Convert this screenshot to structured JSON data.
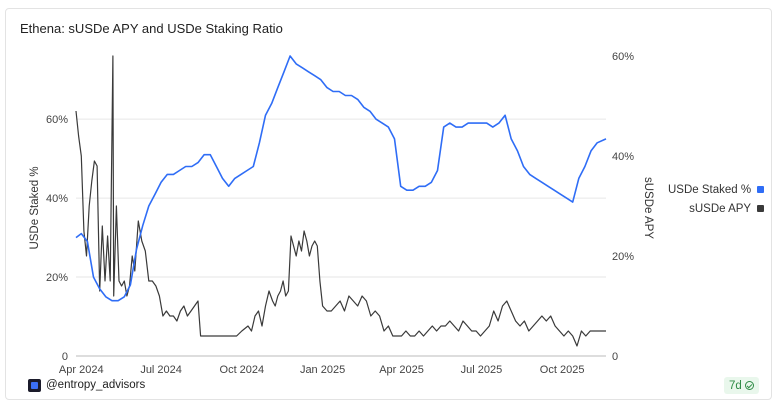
{
  "chart_data": {
    "type": "line",
    "title": "Ethena: sUSDe APY and USDe Staking Ratio",
    "ylabel_left": "USDe Staked %",
    "ylabel_right": "sUSDe APY",
    "ylim_left": [
      0,
      76
    ],
    "ylim_right": [
      0,
      60
    ],
    "yticks_left": [
      "0",
      "20%",
      "40%",
      "60%"
    ],
    "yticks_right": [
      "0",
      "20%",
      "40%",
      "60%"
    ],
    "xlim": [
      "2024-03-26",
      "2025-11-20"
    ],
    "xticks": [
      {
        "date": "2024-04-01",
        "label": "Apr 2024"
      },
      {
        "date": "2024-07-01",
        "label": "Jul 2024"
      },
      {
        "date": "2024-10-01",
        "label": "Oct 2024"
      },
      {
        "date": "2025-01-01",
        "label": "Jan 2025"
      },
      {
        "date": "2025-04-01",
        "label": "Apr 2025"
      },
      {
        "date": "2025-07-01",
        "label": "Jul 2025"
      },
      {
        "date": "2025-10-01",
        "label": "Oct 2025"
      }
    ],
    "grid": "horizontal",
    "legend_position": "right",
    "series": [
      {
        "name": "USDe Staked %",
        "axis": "left",
        "color": "#2f6df6",
        "points": [
          [
            "2024-03-26",
            30
          ],
          [
            "2024-04-01",
            31
          ],
          [
            "2024-04-08",
            29
          ],
          [
            "2024-04-15",
            20
          ],
          [
            "2024-04-22",
            17
          ],
          [
            "2024-04-29",
            15
          ],
          [
            "2024-05-06",
            14
          ],
          [
            "2024-05-13",
            14
          ],
          [
            "2024-05-20",
            15
          ],
          [
            "2024-05-27",
            18
          ],
          [
            "2024-06-03",
            27
          ],
          [
            "2024-06-10",
            33
          ],
          [
            "2024-06-17",
            38
          ],
          [
            "2024-06-24",
            41
          ],
          [
            "2024-07-01",
            44
          ],
          [
            "2024-07-08",
            46
          ],
          [
            "2024-07-15",
            46
          ],
          [
            "2024-07-22",
            47
          ],
          [
            "2024-07-29",
            48
          ],
          [
            "2024-08-05",
            48
          ],
          [
            "2024-08-12",
            49
          ],
          [
            "2024-08-19",
            51
          ],
          [
            "2024-08-26",
            51
          ],
          [
            "2024-09-02",
            48
          ],
          [
            "2024-09-09",
            45
          ],
          [
            "2024-09-16",
            43
          ],
          [
            "2024-09-23",
            45
          ],
          [
            "2024-09-30",
            46
          ],
          [
            "2024-10-07",
            47
          ],
          [
            "2024-10-14",
            48
          ],
          [
            "2024-10-21",
            54
          ],
          [
            "2024-10-28",
            61
          ],
          [
            "2024-11-04",
            64
          ],
          [
            "2024-11-11",
            68
          ],
          [
            "2024-11-18",
            72
          ],
          [
            "2024-11-25",
            76
          ],
          [
            "2024-12-02",
            74
          ],
          [
            "2024-12-09",
            73
          ],
          [
            "2024-12-16",
            72
          ],
          [
            "2024-12-23",
            71
          ],
          [
            "2024-12-30",
            70
          ],
          [
            "2025-01-06",
            68
          ],
          [
            "2025-01-13",
            67
          ],
          [
            "2025-01-20",
            67
          ],
          [
            "2025-01-27",
            66
          ],
          [
            "2025-02-03",
            66
          ],
          [
            "2025-02-10",
            65
          ],
          [
            "2025-02-17",
            63
          ],
          [
            "2025-02-24",
            62
          ],
          [
            "2025-03-03",
            60
          ],
          [
            "2025-03-10",
            59
          ],
          [
            "2025-03-17",
            58
          ],
          [
            "2025-03-24",
            55
          ],
          [
            "2025-03-31",
            43
          ],
          [
            "2025-04-07",
            42
          ],
          [
            "2025-04-14",
            42
          ],
          [
            "2025-04-21",
            43
          ],
          [
            "2025-04-28",
            43
          ],
          [
            "2025-05-05",
            44
          ],
          [
            "2025-05-12",
            47
          ],
          [
            "2025-05-19",
            58
          ],
          [
            "2025-05-26",
            59
          ],
          [
            "2025-06-02",
            58
          ],
          [
            "2025-06-09",
            58
          ],
          [
            "2025-06-16",
            59
          ],
          [
            "2025-06-23",
            59
          ],
          [
            "2025-06-30",
            59
          ],
          [
            "2025-07-07",
            59
          ],
          [
            "2025-07-14",
            58
          ],
          [
            "2025-07-21",
            59
          ],
          [
            "2025-07-28",
            61
          ],
          [
            "2025-08-04",
            55
          ],
          [
            "2025-08-11",
            52
          ],
          [
            "2025-08-18",
            48
          ],
          [
            "2025-08-25",
            46
          ],
          [
            "2025-09-01",
            45
          ],
          [
            "2025-09-08",
            44
          ],
          [
            "2025-09-15",
            43
          ],
          [
            "2025-09-22",
            42
          ],
          [
            "2025-09-29",
            41
          ],
          [
            "2025-10-06",
            40
          ],
          [
            "2025-10-13",
            39
          ],
          [
            "2025-10-20",
            45
          ],
          [
            "2025-10-27",
            48
          ],
          [
            "2025-11-03",
            52
          ],
          [
            "2025-11-10",
            54
          ],
          [
            "2025-11-20",
            55
          ]
        ]
      },
      {
        "name": "sUSDe APY",
        "axis": "right",
        "color": "#3a3a3a",
        "points": [
          [
            "2024-03-26",
            49
          ],
          [
            "2024-03-29",
            44
          ],
          [
            "2024-04-01",
            40
          ],
          [
            "2024-04-04",
            25
          ],
          [
            "2024-04-07",
            20
          ],
          [
            "2024-04-10",
            30
          ],
          [
            "2024-04-13",
            35
          ],
          [
            "2024-04-16",
            39
          ],
          [
            "2024-04-19",
            38
          ],
          [
            "2024-04-22",
            13
          ],
          [
            "2024-04-25",
            26
          ],
          [
            "2024-04-28",
            15
          ],
          [
            "2024-05-01",
            24
          ],
          [
            "2024-05-04",
            15
          ],
          [
            "2024-05-07",
            60
          ],
          [
            "2024-05-08",
            12
          ],
          [
            "2024-05-11",
            30
          ],
          [
            "2024-05-14",
            15
          ],
          [
            "2024-05-17",
            14
          ],
          [
            "2024-05-20",
            15
          ],
          [
            "2024-05-23",
            12
          ],
          [
            "2024-05-26",
            14
          ],
          [
            "2024-05-29",
            20
          ],
          [
            "2024-06-01",
            17
          ],
          [
            "2024-06-05",
            27
          ],
          [
            "2024-06-09",
            23
          ],
          [
            "2024-06-13",
            21
          ],
          [
            "2024-06-17",
            15
          ],
          [
            "2024-06-21",
            15
          ],
          [
            "2024-06-25",
            14
          ],
          [
            "2024-06-29",
            12
          ],
          [
            "2024-07-03",
            8
          ],
          [
            "2024-07-07",
            9
          ],
          [
            "2024-07-11",
            8
          ],
          [
            "2024-07-15",
            8
          ],
          [
            "2024-07-19",
            7
          ],
          [
            "2024-07-23",
            9
          ],
          [
            "2024-07-27",
            10
          ],
          [
            "2024-07-31",
            8
          ],
          [
            "2024-08-04",
            9
          ],
          [
            "2024-08-08",
            10
          ],
          [
            "2024-08-12",
            11
          ],
          [
            "2024-08-15",
            4
          ],
          [
            "2024-08-25",
            4
          ],
          [
            "2024-09-05",
            4
          ],
          [
            "2024-09-15",
            4
          ],
          [
            "2024-09-25",
            4
          ],
          [
            "2024-10-01",
            5
          ],
          [
            "2024-10-08",
            6
          ],
          [
            "2024-10-12",
            5
          ],
          [
            "2024-10-16",
            8
          ],
          [
            "2024-10-20",
            9
          ],
          [
            "2024-10-24",
            6
          ],
          [
            "2024-10-28",
            10
          ],
          [
            "2024-11-01",
            13
          ],
          [
            "2024-11-05",
            11
          ],
          [
            "2024-11-08",
            10
          ],
          [
            "2024-11-11",
            12
          ],
          [
            "2024-11-14",
            13
          ],
          [
            "2024-11-17",
            15
          ],
          [
            "2024-11-20",
            12
          ],
          [
            "2024-11-23",
            13
          ],
          [
            "2024-11-26",
            24
          ],
          [
            "2024-11-29",
            22
          ],
          [
            "2024-12-02",
            20
          ],
          [
            "2024-12-05",
            23
          ],
          [
            "2024-12-08",
            21
          ],
          [
            "2024-12-11",
            25
          ],
          [
            "2024-12-14",
            23
          ],
          [
            "2024-12-17",
            20
          ],
          [
            "2024-12-20",
            22
          ],
          [
            "2024-12-23",
            23
          ],
          [
            "2024-12-26",
            22
          ],
          [
            "2024-12-29",
            15
          ],
          [
            "2025-01-01",
            10
          ],
          [
            "2025-01-06",
            9
          ],
          [
            "2025-01-11",
            9
          ],
          [
            "2025-01-16",
            10
          ],
          [
            "2025-01-21",
            11
          ],
          [
            "2025-01-26",
            9
          ],
          [
            "2025-01-31",
            12
          ],
          [
            "2025-02-05",
            11
          ],
          [
            "2025-02-10",
            10
          ],
          [
            "2025-02-15",
            12
          ],
          [
            "2025-02-20",
            11
          ],
          [
            "2025-02-25",
            8
          ],
          [
            "2025-03-02",
            9
          ],
          [
            "2025-03-07",
            8
          ],
          [
            "2025-03-12",
            5
          ],
          [
            "2025-03-17",
            6
          ],
          [
            "2025-03-22",
            4
          ],
          [
            "2025-03-27",
            4
          ],
          [
            "2025-04-01",
            4
          ],
          [
            "2025-04-06",
            5
          ],
          [
            "2025-04-11",
            4
          ],
          [
            "2025-04-16",
            4
          ],
          [
            "2025-04-21",
            5
          ],
          [
            "2025-04-26",
            4
          ],
          [
            "2025-05-01",
            5
          ],
          [
            "2025-05-06",
            6
          ],
          [
            "2025-05-11",
            5
          ],
          [
            "2025-05-16",
            6
          ],
          [
            "2025-05-21",
            6
          ],
          [
            "2025-05-26",
            7
          ],
          [
            "2025-05-31",
            6
          ],
          [
            "2025-06-05",
            5
          ],
          [
            "2025-06-10",
            7
          ],
          [
            "2025-06-15",
            6
          ],
          [
            "2025-06-20",
            5
          ],
          [
            "2025-06-25",
            5
          ],
          [
            "2025-06-30",
            4
          ],
          [
            "2025-07-05",
            5
          ],
          [
            "2025-07-10",
            6
          ],
          [
            "2025-07-15",
            9
          ],
          [
            "2025-07-20",
            7
          ],
          [
            "2025-07-25",
            10
          ],
          [
            "2025-07-30",
            11
          ],
          [
            "2025-08-04",
            9
          ],
          [
            "2025-08-09",
            7
          ],
          [
            "2025-08-14",
            6
          ],
          [
            "2025-08-19",
            7
          ],
          [
            "2025-08-24",
            5
          ],
          [
            "2025-08-29",
            6
          ],
          [
            "2025-09-03",
            7
          ],
          [
            "2025-09-08",
            8
          ],
          [
            "2025-09-13",
            7
          ],
          [
            "2025-09-18",
            8
          ],
          [
            "2025-09-23",
            6
          ],
          [
            "2025-09-28",
            5
          ],
          [
            "2025-10-03",
            4
          ],
          [
            "2025-10-08",
            5
          ],
          [
            "2025-10-13",
            4
          ],
          [
            "2025-10-18",
            2
          ],
          [
            "2025-10-23",
            5
          ],
          [
            "2025-10-28",
            4
          ],
          [
            "2025-11-02",
            5
          ],
          [
            "2025-11-10",
            5
          ],
          [
            "2025-11-20",
            5
          ]
        ]
      }
    ]
  },
  "footer": {
    "handle": "@entropy_advisors",
    "badge_label": "7d"
  }
}
